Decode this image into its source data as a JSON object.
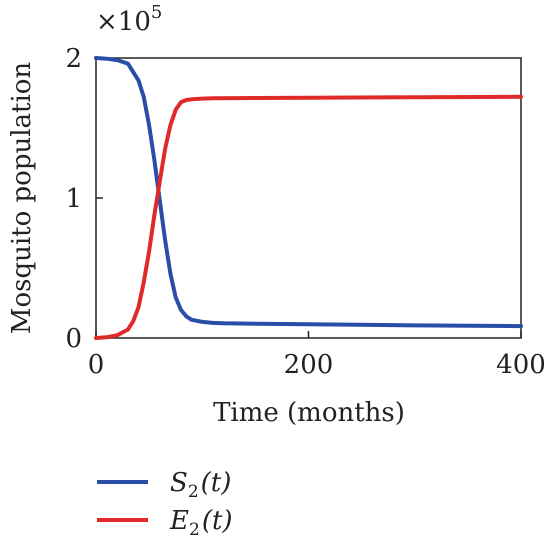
{
  "chart_data": {
    "type": "line",
    "title": "",
    "xlabel": "Time (months)",
    "ylabel": "Mosquito population",
    "y_multiplier_label": "×10",
    "y_multiplier_exponent": "5",
    "xlim": [
      0,
      400
    ],
    "ylim": [
      0,
      2
    ],
    "x_ticks": [
      "0",
      "200",
      "400"
    ],
    "y_ticks": [
      "0",
      "1",
      "2"
    ],
    "grid": false,
    "legend_position": "bottom",
    "series": [
      {
        "name": "S2(t)",
        "label_main": "S",
        "label_sub": "2",
        "label_arg": "(t)",
        "color": "#2a4ea6",
        "x": [
          0,
          10,
          20,
          30,
          40,
          45,
          50,
          55,
          60,
          65,
          70,
          75,
          80,
          85,
          90,
          100,
          110,
          120,
          150,
          200,
          300,
          400
        ],
        "y": [
          2.0,
          1.995,
          1.985,
          1.96,
          1.84,
          1.72,
          1.52,
          1.27,
          0.98,
          0.7,
          0.46,
          0.29,
          0.2,
          0.155,
          0.13,
          0.115,
          0.108,
          0.105,
          0.102,
          0.098,
          0.09,
          0.085
        ]
      },
      {
        "name": "E2(t)",
        "label_main": "E",
        "label_sub": "2",
        "label_arg": "(t)",
        "color": "#e02a2a",
        "x": [
          0,
          10,
          20,
          30,
          35,
          40,
          45,
          50,
          55,
          60,
          65,
          70,
          75,
          80,
          85,
          90,
          100,
          110,
          150,
          200,
          300,
          400
        ],
        "y": [
          0.0,
          0.005,
          0.02,
          0.06,
          0.12,
          0.22,
          0.4,
          0.62,
          0.88,
          1.12,
          1.35,
          1.52,
          1.63,
          1.685,
          1.7,
          1.705,
          1.71,
          1.712,
          1.714,
          1.716,
          1.72,
          1.723
        ]
      }
    ]
  }
}
